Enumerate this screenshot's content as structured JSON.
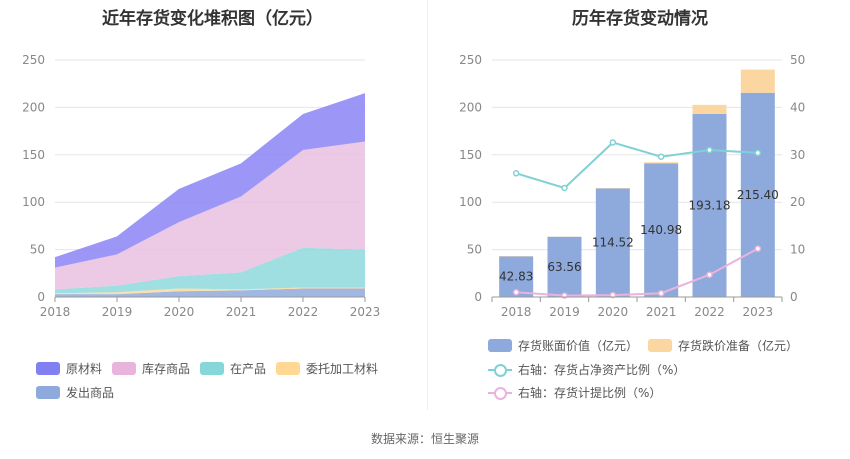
{
  "left": {
    "title": "近年存货变化堆积图（亿元）",
    "chart_data": {
      "type": "area",
      "stacked": true,
      "x": [
        "2018",
        "2019",
        "2020",
        "2021",
        "2022",
        "2023"
      ],
      "ylim": [
        0,
        250
      ],
      "yticks": [
        0,
        50,
        100,
        150,
        200,
        250
      ],
      "grid": true,
      "legend_position": "bottom",
      "series": [
        {
          "name": "发出商品",
          "color": "#8faadc",
          "values": [
            3,
            3,
            6,
            7,
            9,
            9
          ]
        },
        {
          "name": "委托加工材料",
          "color": "#ffd99a",
          "values": [
            1,
            2,
            3,
            1,
            1,
            1
          ]
        },
        {
          "name": "在产品",
          "color": "#8ed8dc",
          "values": [
            4,
            7,
            13,
            18,
            42,
            40
          ]
        },
        {
          "name": "库存商品",
          "color": "#e9bfe0",
          "values": [
            23,
            33,
            57,
            80,
            103,
            114
          ]
        },
        {
          "name": "原材料",
          "color": "#8b85f5",
          "values": [
            11,
            19,
            35,
            35,
            38,
            51
          ]
        }
      ]
    },
    "legend_order": [
      {
        "name": "原材料",
        "color": "#8080f2"
      },
      {
        "name": "库存商品",
        "color": "#e8b4dc"
      },
      {
        "name": "在产品",
        "color": "#86d6da"
      },
      {
        "name": "委托加工材料",
        "color": "#ffd894"
      },
      {
        "name": "发出商品",
        "color": "#8ea9dc"
      }
    ]
  },
  "right": {
    "title": "历年存货变动情况",
    "chart_data": {
      "type": "bar",
      "stacked": true,
      "categories": [
        "2018",
        "2019",
        "2020",
        "2021",
        "2022",
        "2023"
      ],
      "ylim": [
        0,
        250
      ],
      "yticks": [
        0,
        50,
        100,
        150,
        200,
        250
      ],
      "y2lim": [
        0,
        50
      ],
      "y2ticks": [
        0,
        10,
        20,
        30,
        40,
        50
      ],
      "grid": true,
      "legend_position": "bottom",
      "series": [
        {
          "name": "存货账面价值（亿元）",
          "type": "bar",
          "axis": "left",
          "color": "#8eaadc",
          "values": [
            42.83,
            63.56,
            114.52,
            140.98,
            193.18,
            215.4
          ],
          "labels": [
            "42.83",
            "63.56",
            "114.52",
            "140.98",
            "193.18",
            "215.40"
          ]
        },
        {
          "name": "存货跌价准备（亿元）",
          "type": "bar",
          "axis": "left",
          "color": "#fbd6a1",
          "values": [
            0.4,
            0.2,
            0.4,
            1.2,
            9.5,
            24.5
          ]
        },
        {
          "name": "右轴：存货占净资产比例（%）",
          "type": "line",
          "axis": "right",
          "color": "#7fd1d6",
          "values": [
            26.1,
            23.0,
            32.6,
            29.6,
            31.0,
            30.4
          ]
        },
        {
          "name": "右轴：存货计提比例（%）",
          "type": "line",
          "axis": "right",
          "color": "#eab3dd",
          "values": [
            1.0,
            0.3,
            0.4,
            0.8,
            4.7,
            10.2
          ]
        }
      ]
    }
  },
  "source": "数据来源：恒生聚源"
}
